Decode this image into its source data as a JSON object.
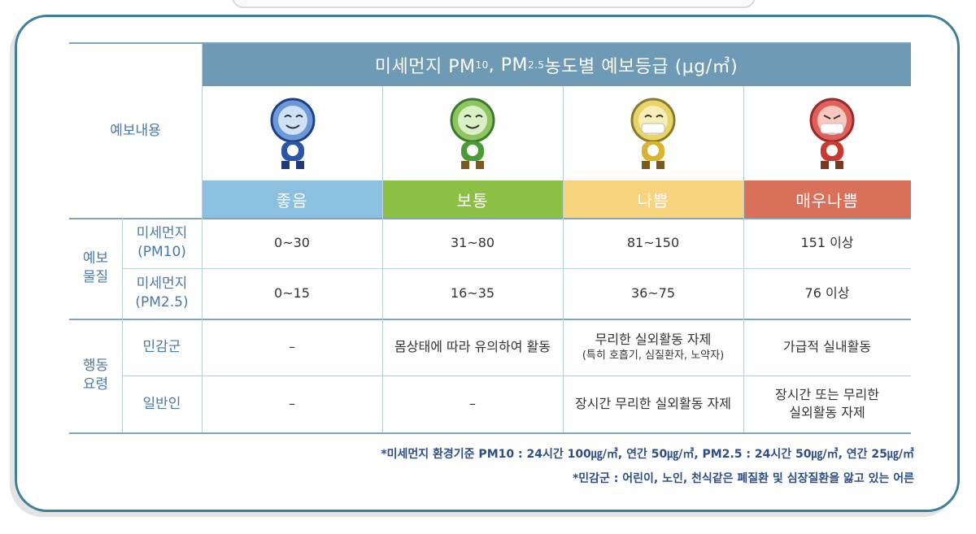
{
  "title": {
    "main": "미세먼지 PM",
    "pm10_sub": "10",
    "mid": ", PM",
    "pm25_sub": "2.5",
    "end": " 농도별 예보등급 (μg/㎥)"
  },
  "header_label": "예보내용",
  "grades": [
    {
      "label": "좋음",
      "color": "#8cc0e0"
    },
    {
      "label": "보통",
      "color": "#8cc045"
    },
    {
      "label": "나쁨",
      "color": "#f8d37e"
    },
    {
      "label": "매우나쁨",
      "color": "#d8705a"
    }
  ],
  "mascot_icons": [
    "good-mascot-icon",
    "normal-mascot-icon",
    "bad-mascot-icon",
    "very-bad-mascot-icon"
  ],
  "sections": {
    "forecast": "예보\n물질",
    "action": "행동\n요령"
  },
  "rows": [
    {
      "label": "미세먼지\n(PM10)",
      "values": [
        "0~30",
        "31~80",
        "81~150",
        "151 이상"
      ]
    },
    {
      "label": "미세먼지\n(PM2.5)",
      "values": [
        "0~15",
        "16~35",
        "36~75",
        "76 이상"
      ]
    },
    {
      "label": "민감군",
      "values": [
        "–",
        "몸상태에 따라 유의하여 활동",
        "무리한 실외활동 자제",
        "가급적 실내활동"
      ],
      "sub": "(특히 호흡기, 심질환자, 노약자)"
    },
    {
      "label": "일반인",
      "values": [
        "–",
        "–",
        "장시간 무리한 실외활동 자제",
        "장시간 또는 무리한\n실외활동 자제"
      ]
    }
  ],
  "notes": [
    "*미세먼지 환경기준 PM10 : 24시간 100㎍/㎥, 연간 50㎍/㎥, PM2.5 : 24시간 50㎍/㎥, 연간 25㎍/㎥",
    "*민감군 : 어린이, 노인, 천식같은 폐질환 및 심장질환을 앓고 있는 어른"
  ]
}
